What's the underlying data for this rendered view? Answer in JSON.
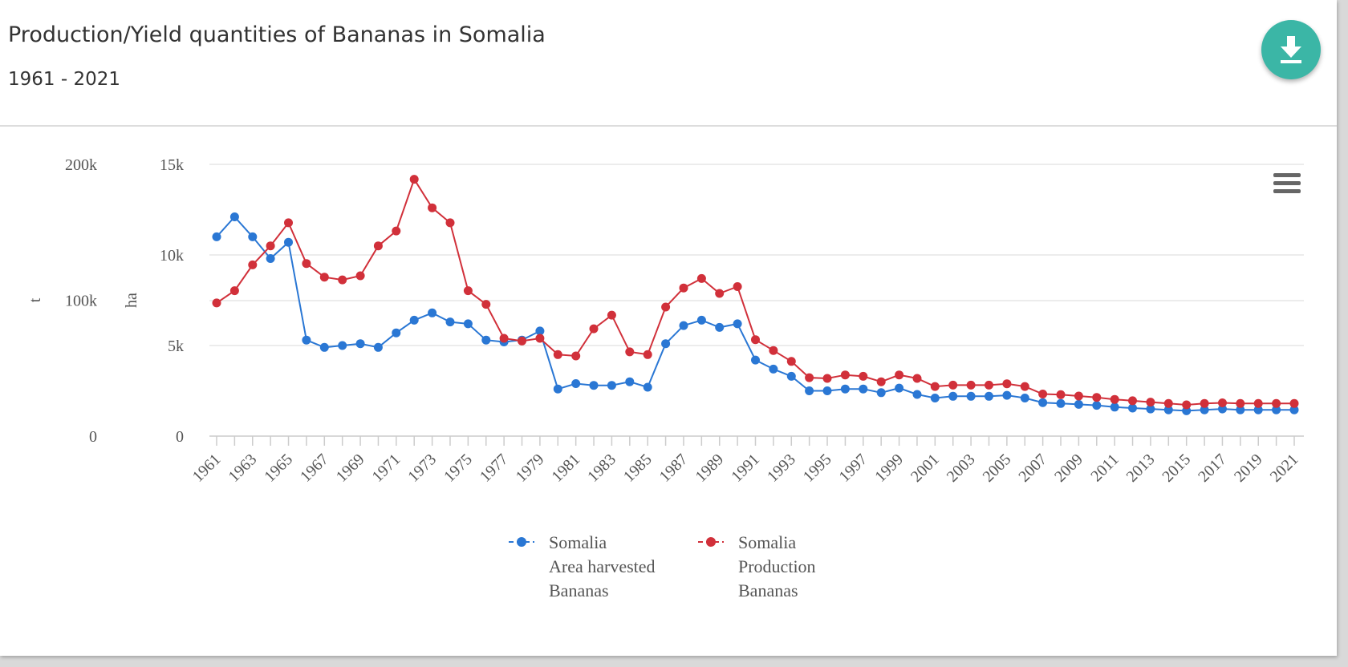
{
  "header": {
    "title": "Production/Yield quantities of Bananas in Somalia",
    "subtitle": "1961 - 2021"
  },
  "icons": {
    "download": "download-icon",
    "menu": "hamburger-menu-icon"
  },
  "colors": {
    "accent": "#3bb6a6",
    "area_series": "#2a77d4",
    "production_series": "#d1303a"
  },
  "chart_data": {
    "type": "line",
    "x": [
      1961,
      1962,
      1963,
      1964,
      1965,
      1966,
      1967,
      1968,
      1969,
      1970,
      1971,
      1972,
      1973,
      1974,
      1975,
      1976,
      1977,
      1978,
      1979,
      1980,
      1981,
      1982,
      1983,
      1984,
      1985,
      1986,
      1987,
      1988,
      1989,
      1990,
      1991,
      1992,
      1993,
      1994,
      1995,
      1996,
      1997,
      1998,
      1999,
      2000,
      2001,
      2002,
      2003,
      2004,
      2005,
      2006,
      2007,
      2008,
      2009,
      2010,
      2011,
      2012,
      2013,
      2014,
      2015,
      2016,
      2017,
      2018,
      2019,
      2020,
      2021
    ],
    "x_tick_labels": [
      "1961",
      "1963",
      "1965",
      "1967",
      "1969",
      "1971",
      "1973",
      "1975",
      "1977",
      "1979",
      "1981",
      "1983",
      "1985",
      "1987",
      "1989",
      "1991",
      "1993",
      "1995",
      "1997",
      "1999",
      "2001",
      "2003",
      "2005",
      "2007",
      "2009",
      "2011",
      "2013",
      "2015",
      "2017",
      "2019",
      "2021"
    ],
    "axes": {
      "left_outer": {
        "label": "t",
        "ticks": [
          "0",
          "100k",
          "200k"
        ],
        "tick_values": [
          0,
          100000,
          200000
        ],
        "range": [
          0,
          200000
        ]
      },
      "left_inner": {
        "label": "ha",
        "ticks": [
          "0",
          "5k",
          "10k",
          "15k"
        ],
        "tick_values": [
          0,
          5000,
          10000,
          15000
        ],
        "range": [
          0,
          15000
        ]
      }
    },
    "series": [
      {
        "name": "Somalia Area harvested Bananas",
        "legend_lines": [
          "Somalia",
          "Area harvested",
          "Bananas"
        ],
        "axis": "ha",
        "color": "#2a77d4",
        "values": [
          11000,
          12100,
          11000,
          9800,
          10700,
          5300,
          4900,
          5000,
          5100,
          4900,
          5700,
          6400,
          6800,
          6300,
          6200,
          5300,
          5200,
          5300,
          5800,
          2600,
          2900,
          2800,
          2800,
          3000,
          2700,
          5100,
          6100,
          6400,
          6000,
          6200,
          4200,
          3700,
          3300,
          2500,
          2500,
          2600,
          2600,
          2400,
          2650,
          2300,
          2100,
          2200,
          2200,
          2200,
          2250,
          2100,
          1850,
          1800,
          1750,
          1700,
          1600,
          1550,
          1500,
          1450,
          1400,
          1450,
          1500,
          1450,
          1450,
          1450,
          1450
        ]
      },
      {
        "name": "Somalia Production Bananas",
        "legend_lines": [
          "Somalia",
          "Production",
          "Bananas"
        ],
        "axis": "t",
        "color": "#d1303a",
        "values": [
          98000,
          107000,
          126000,
          140000,
          157000,
          127000,
          117000,
          115000,
          118000,
          140000,
          151000,
          189000,
          168000,
          157000,
          107000,
          97000,
          72000,
          70000,
          72000,
          60000,
          59000,
          79000,
          89000,
          62000,
          60000,
          95000,
          109000,
          116000,
          105000,
          110000,
          71000,
          63000,
          55000,
          43000,
          42500,
          45000,
          44000,
          40000,
          45000,
          42500,
          36500,
          37500,
          37500,
          37500,
          38500,
          36500,
          31000,
          30500,
          29500,
          28500,
          27000,
          26000,
          25000,
          24000,
          23000,
          24000,
          24500,
          24000,
          24000,
          24000,
          24000
        ]
      }
    ]
  }
}
